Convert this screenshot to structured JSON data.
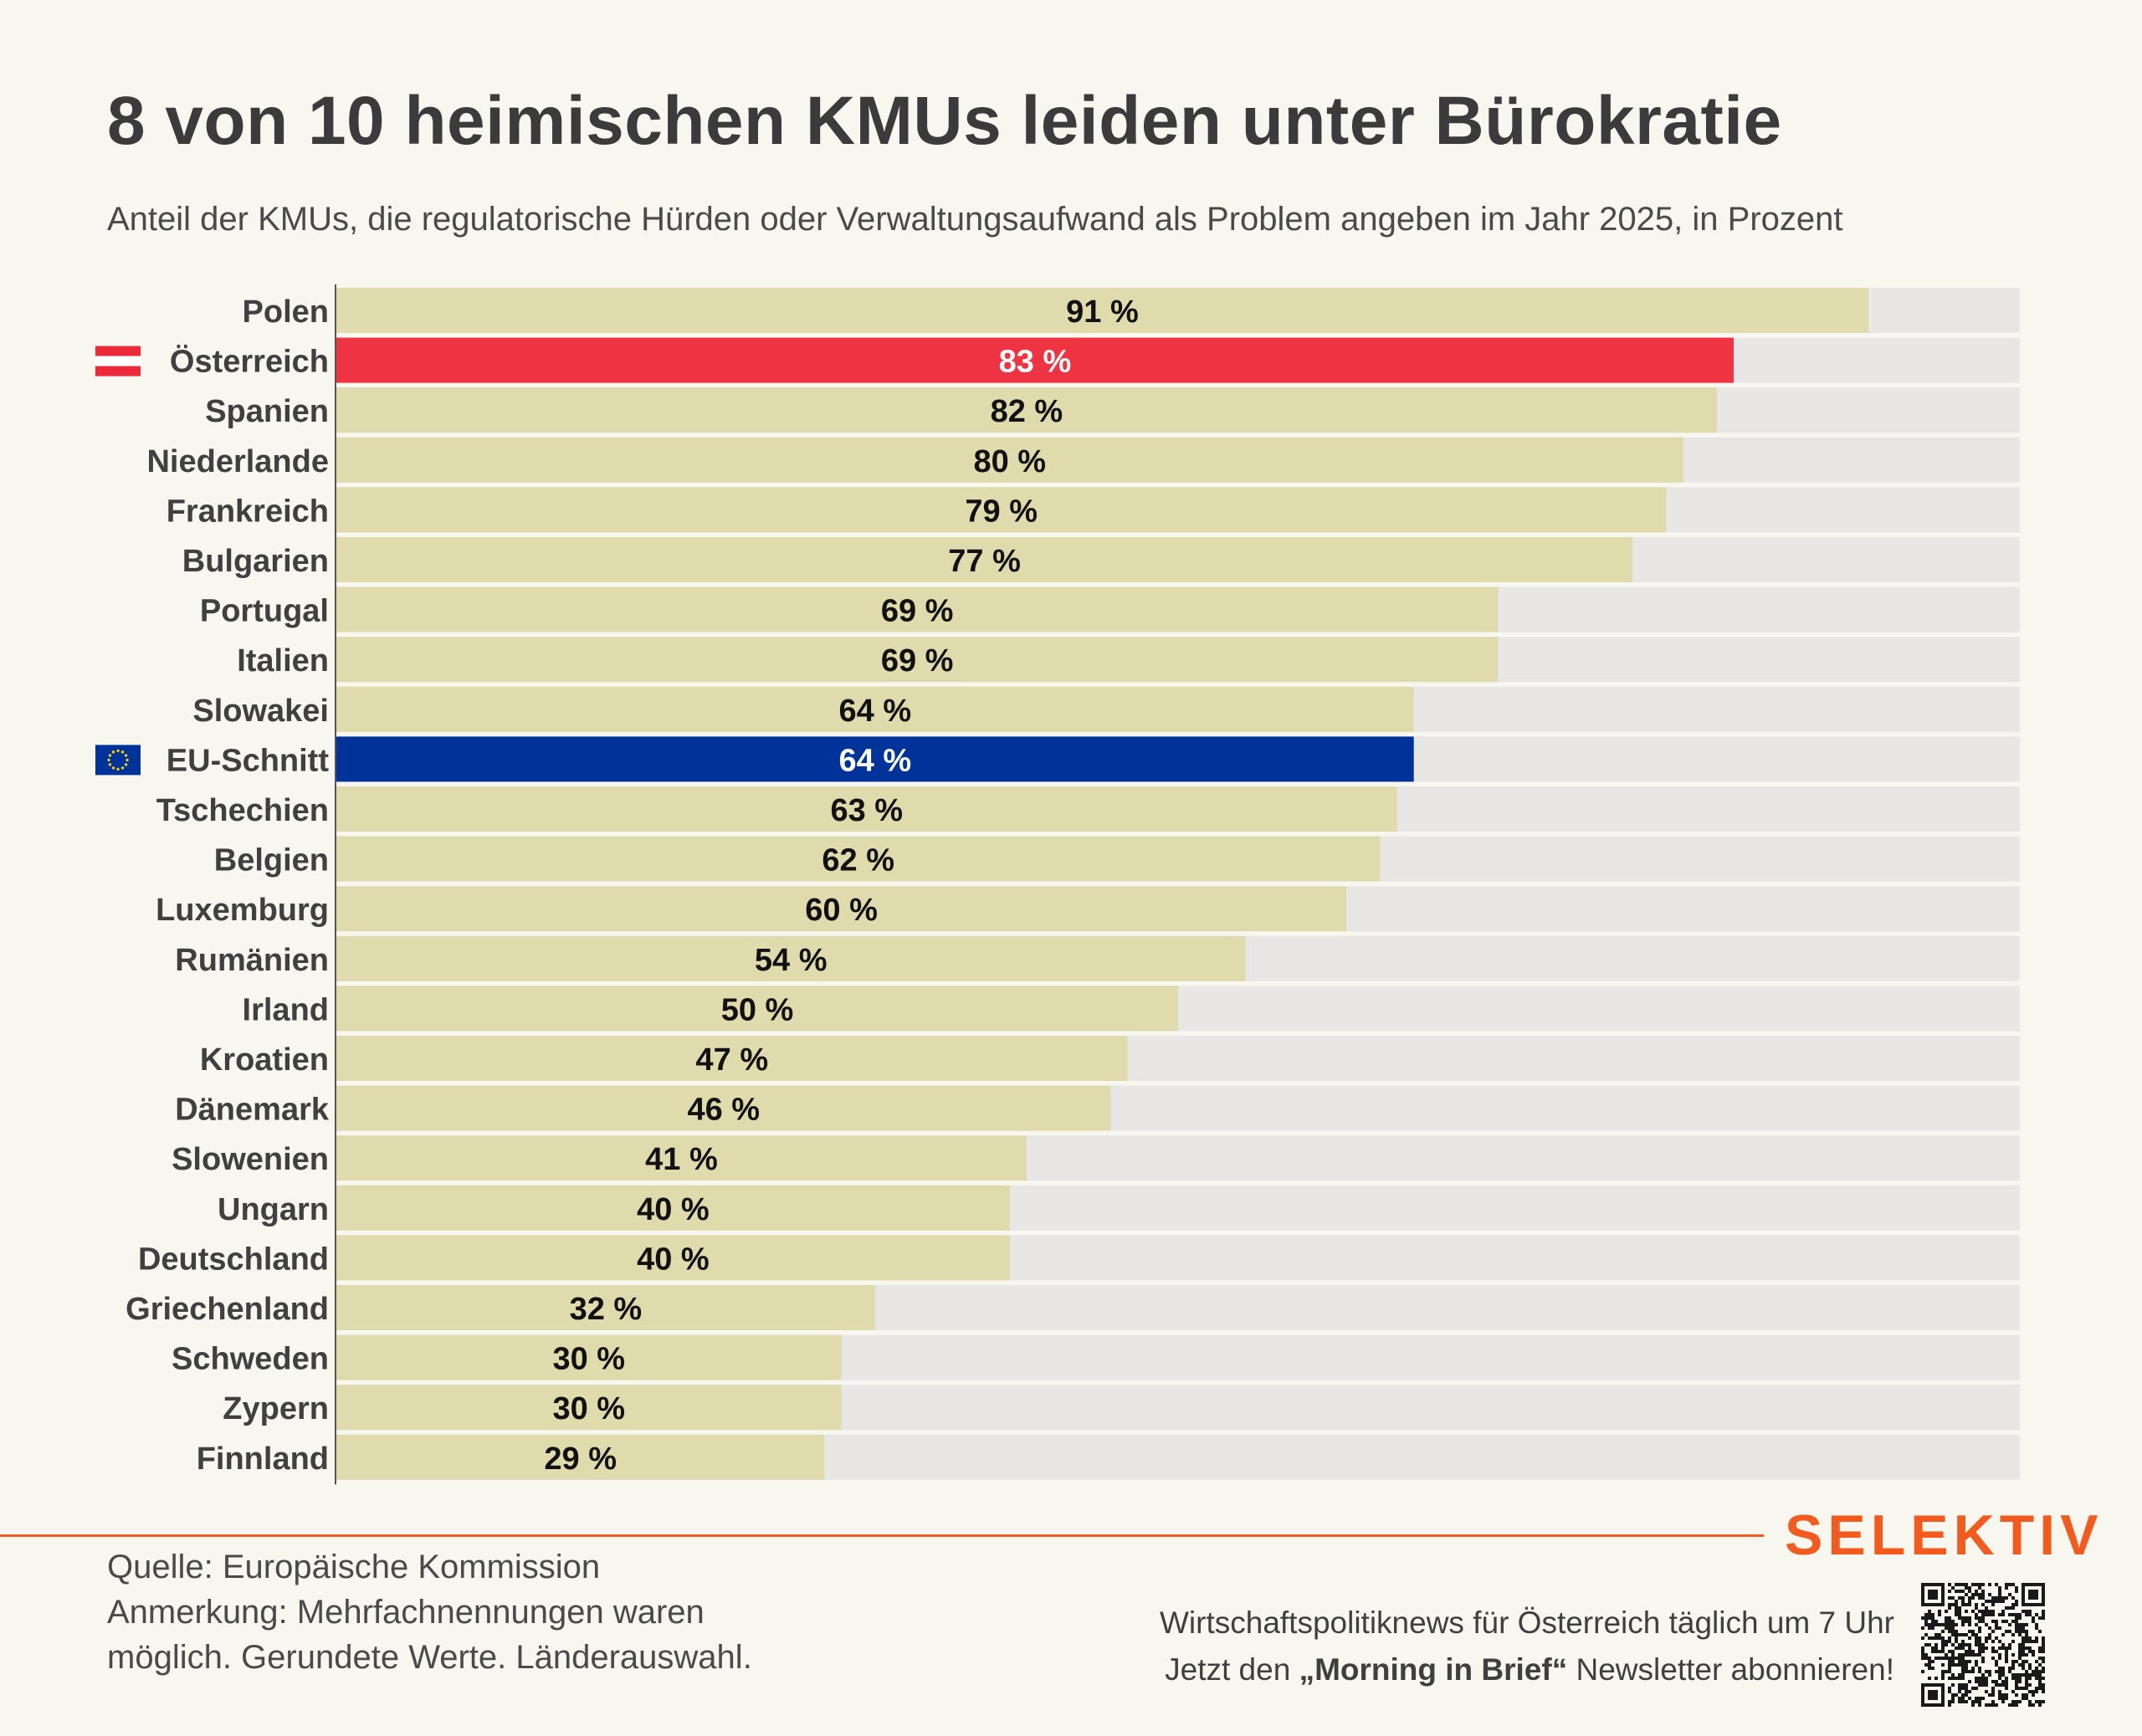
{
  "header": {
    "title": "8 von 10 heimischen KMUs leiden unter Bürokratie",
    "subtitle": "Anteil der KMUs, die regulatorische Hürden oder Verwaltungsaufwand als Problem angeben im Jahr 2025, in Prozent"
  },
  "chart_data": {
    "type": "bar",
    "orientation": "horizontal",
    "title": "8 von 10 heimischen KMUs leiden unter Bürokratie",
    "subtitle": "Anteil der KMUs, die regulatorische Hürden oder Verwaltungsaufwand als Problem angeben im Jahr 2025, in Prozent",
    "categories": [
      "Polen",
      "Österreich",
      "Spanien",
      "Niederlande",
      "Frankreich",
      "Bulgarien",
      "Portugal",
      "Italien",
      "Slowakei",
      "EU-Schnitt",
      "Tschechien",
      "Belgien",
      "Luxemburg",
      "Rumänien",
      "Irland",
      "Kroatien",
      "Dänemark",
      "Slowenien",
      "Ungarn",
      "Deutschland",
      "Griechenland",
      "Schweden",
      "Zypern",
      "Finnland"
    ],
    "values": [
      91,
      83,
      82,
      80,
      79,
      77,
      69,
      69,
      64,
      64,
      63,
      62,
      60,
      54,
      50,
      47,
      46,
      41,
      40,
      40,
      32,
      30,
      30,
      29
    ],
    "value_labels": [
      "91 %",
      "83 %",
      "82 %",
      "80 %",
      "79 %",
      "77 %",
      "69 %",
      "69 %",
      "64 %",
      "64 %",
      "63 %",
      "62 %",
      "60 %",
      "54 %",
      "50 %",
      "47 %",
      "46 %",
      "41 %",
      "40 %",
      "40 %",
      "32 %",
      "30 %",
      "30 %",
      "29 %"
    ],
    "unit": "%",
    "xlim": [
      0,
      100
    ],
    "grid": false,
    "background_track": true,
    "highlights": {
      "Österreich": {
        "color": "#ee3342",
        "label_color": "#ffffff",
        "icon": "austria-flag-icon"
      },
      "EU-Schnitt": {
        "color": "#003399",
        "label_color": "#ffffff",
        "icon": "eu-flag-icon"
      }
    },
    "colors": {
      "bar": "#dfdbad",
      "track": "#e9e7e6",
      "label": "#111111",
      "category": "#404040"
    }
  },
  "footer": {
    "source": "Quelle: Europäische Kommission",
    "note_line1": "Anmerkung: Mehrfachnennungen waren",
    "note_line2": "möglich. Gerundete Werte. Länderauswahl.",
    "brand": "SELEKTIV",
    "promo_line1": "Wirtschaftspolitiknews für Österreich täglich um 7 Uhr",
    "promo_line2_prefix": "Jetzt den ",
    "promo_line2_bold": "„Morning in Brief“",
    "promo_line2_suffix": " Newsletter abonnieren!",
    "qr_icon": "qr-code-icon",
    "accent_color": "#f25a1e"
  }
}
